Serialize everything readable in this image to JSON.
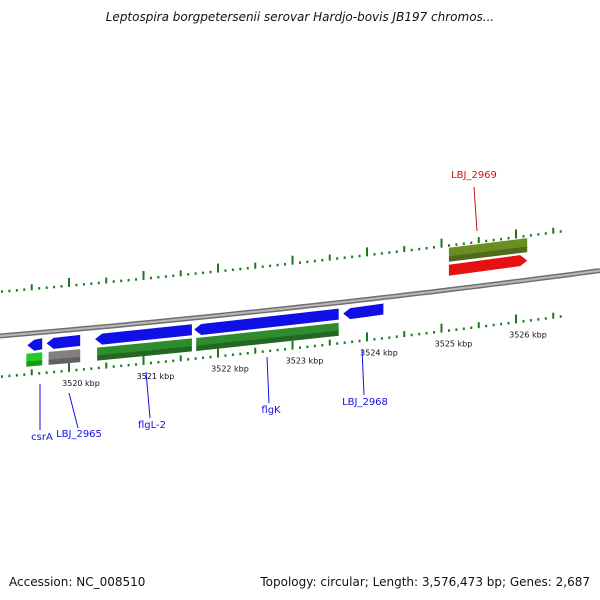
{
  "header": {
    "title": "Leptospira borgpetersenii serovar Hardjo-bovis JB197 chromos..."
  },
  "footer": {
    "accession": "Accession: NC_008510",
    "summary": "Topology: circular; Length: 3,576,473 bp; Genes: 2,687"
  },
  "colors": {
    "forward_gene": "#1010e6",
    "reverse_gene": "#e61010",
    "cds_forward": "#2e8b2e",
    "cds_reverse": "#6b8e23",
    "rna": "#22cc22",
    "other": "#808080",
    "tick": "#1a7a1a",
    "backbone": "#8a8a8a"
  },
  "ticks": [
    {
      "kbp": 3520,
      "label": "3520 kbp"
    },
    {
      "kbp": 3521,
      "label": "3521 kbp"
    },
    {
      "kbp": 3522,
      "label": "3522 kbp"
    },
    {
      "kbp": 3523,
      "label": "3523 kbp"
    },
    {
      "kbp": 3524,
      "label": "3524 kbp"
    },
    {
      "kbp": 3525,
      "label": "3525 kbp"
    },
    {
      "kbp": 3526,
      "label": "3526 kbp"
    }
  ],
  "genes": [
    {
      "name": "csrA",
      "strand": "-",
      "start_kbp": 3519.44,
      "end_kbp": 3519.64,
      "label_color": "#1010e6",
      "feature_under": "rna"
    },
    {
      "name": "LBJ_2965",
      "strand": "-",
      "start_kbp": 3519.7,
      "end_kbp": 3520.15,
      "label_color": "#1010e6",
      "feature_under": "other"
    },
    {
      "name": "flgL-2",
      "strand": "-",
      "start_kbp": 3520.35,
      "end_kbp": 3521.65,
      "label_color": "#1010e6",
      "feature_under": "cds_forward"
    },
    {
      "name": "flgK",
      "strand": "-",
      "start_kbp": 3521.68,
      "end_kbp": 3523.62,
      "label_color": "#1010e6",
      "feature_under": "cds_forward"
    },
    {
      "name": "LBJ_2968",
      "strand": "-",
      "start_kbp": 3523.68,
      "end_kbp": 3524.22,
      "label_color": "#1010e6",
      "feature_under": "none"
    },
    {
      "name": "LBJ_2969",
      "strand": "+",
      "start_kbp": 3525.1,
      "end_kbp": 3526.15,
      "label_color": "#cc1010",
      "feature_under": "cds_reverse"
    }
  ]
}
